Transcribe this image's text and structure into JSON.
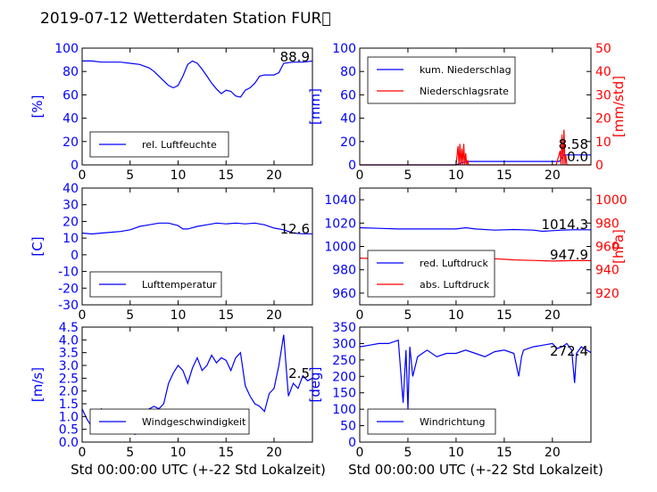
{
  "title": "2019-07-12 Wetterdaten Station FUR\u0000",
  "xlabel": "Std 00:00:00 UTC (+-22 Std Lokalzeit)",
  "colors": {
    "blue": "#0000ff",
    "red": "#ff0000",
    "axis": "#000000"
  },
  "chart_data": [
    {
      "type": "line",
      "panel": "humidity",
      "ylabel": "[%]",
      "xlim": [
        0,
        24
      ],
      "ylim": [
        0,
        100
      ],
      "xticks": [
        "0",
        "5",
        "10",
        "15",
        "20"
      ],
      "yticks": [
        "0",
        "20",
        "40",
        "60",
        "80",
        "100"
      ],
      "legend": [
        "rel. Luftfeuchte"
      ],
      "legend_loc": "lower-left",
      "annotation": "88.9",
      "series": [
        {
          "name": "rel. Luftfeuchte",
          "color": "#0000ff",
          "x": [
            0,
            1,
            2,
            3,
            4,
            5,
            6,
            7,
            7.5,
            8,
            8.5,
            9,
            9.5,
            10,
            10.5,
            11,
            11.5,
            12,
            12.5,
            13,
            13.5,
            14,
            14.5,
            15,
            15.5,
            16,
            16.5,
            17,
            17.5,
            18,
            18.5,
            19,
            19.5,
            20,
            20.5,
            21,
            22,
            23,
            24
          ],
          "y": [
            89,
            89,
            88,
            88,
            88,
            87,
            86,
            83,
            80,
            76,
            72,
            68,
            66,
            68,
            76,
            86,
            89,
            87,
            82,
            76,
            70,
            65,
            61,
            64,
            63,
            59,
            58,
            64,
            66,
            70,
            76,
            77,
            77,
            77,
            79,
            87,
            88,
            88,
            88.9
          ]
        }
      ]
    },
    {
      "type": "line",
      "panel": "precipitation",
      "ylabel": "[mm]",
      "y2label": "[mm/std]",
      "xlim": [
        0,
        24
      ],
      "ylim": [
        0,
        100
      ],
      "y2lim": [
        0,
        50
      ],
      "xticks": [
        "0",
        "5",
        "10",
        "15",
        "20"
      ],
      "yticks": [
        "0",
        "20",
        "40",
        "60",
        "80",
        "100"
      ],
      "y2ticks": [
        "0",
        "10",
        "20",
        "30",
        "40",
        "50"
      ],
      "legend": [
        "kum. Niederschlag",
        "Niederschlagsrate"
      ],
      "legend_loc": "upper-left",
      "annotations": [
        "8.58",
        "0.0"
      ],
      "series": [
        {
          "name": "kum. Niederschlag",
          "color": "#0000ff",
          "axis": "left",
          "x": [
            0,
            10.0,
            10.3,
            10.6,
            11,
            11.2,
            15,
            18,
            20.7,
            21.0,
            21.2,
            24
          ],
          "y": [
            0,
            0,
            1,
            2,
            2.5,
            3,
            3,
            3,
            3,
            6,
            8.58,
            8.58
          ]
        },
        {
          "name": "Niederschlagsrate",
          "color": "#ff0000",
          "axis": "right",
          "x": [
            0,
            10,
            10.2,
            10.3,
            10.4,
            10.5,
            10.6,
            10.7,
            10.8,
            10.9,
            11,
            11.1,
            11.2,
            11.3,
            20.4,
            20.6,
            20.8,
            20.9,
            21.0,
            21.1,
            21.2,
            21.3,
            21.4,
            21.5,
            24
          ],
          "y": [
            0,
            0,
            8,
            0,
            9,
            0,
            7,
            0,
            9,
            0,
            5,
            0,
            2,
            0,
            0,
            3,
            6,
            0,
            13,
            0,
            15,
            0,
            4,
            0,
            0
          ]
        }
      ]
    },
    {
      "type": "line",
      "panel": "temperature",
      "ylabel": "[C]",
      "xlim": [
        0,
        24
      ],
      "ylim": [
        -30,
        40
      ],
      "xticks": [
        "0",
        "5",
        "10",
        "15",
        "20"
      ],
      "yticks": [
        "-30",
        "-20",
        "-10",
        "0",
        "10",
        "20",
        "30",
        "40"
      ],
      "legend": [
        "Lufttemperatur"
      ],
      "legend_loc": "lower-left",
      "annotation": "12.6",
      "series": [
        {
          "name": "Lufttemperatur",
          "color": "#0000ff",
          "x": [
            0,
            1,
            2,
            3,
            4,
            5,
            6,
            7,
            8,
            9,
            10,
            10.5,
            11,
            12,
            13,
            14,
            15,
            16,
            17,
            18,
            19,
            20,
            21,
            22,
            23,
            24
          ],
          "y": [
            13,
            12.5,
            13,
            13.5,
            14,
            15,
            17,
            18,
            19,
            19,
            17.5,
            15.5,
            15.5,
            17,
            18,
            19,
            18.5,
            19,
            18.5,
            19,
            18,
            16,
            15,
            13,
            12.6,
            12.6
          ]
        }
      ]
    },
    {
      "type": "line",
      "panel": "pressure",
      "ylabel": "",
      "y2label": "[hPa]",
      "xlim": [
        0,
        24
      ],
      "ylim": [
        950,
        1050
      ],
      "y2lim": [
        910,
        1010
      ],
      "xticks": [
        "0",
        "5",
        "10",
        "15",
        "20"
      ],
      "yticks": [
        "960",
        "980",
        "1000",
        "1020",
        "1040"
      ],
      "y2ticks": [
        "920",
        "940",
        "960",
        "980",
        "1000"
      ],
      "legend": [
        "red. Luftdruck",
        "abs. Luftdruck"
      ],
      "legend_loc": "lower-left",
      "annotations": [
        "1014.3",
        "947.9"
      ],
      "series": [
        {
          "name": "red. Luftdruck",
          "color": "#0000ff",
          "axis": "left",
          "x": [
            0,
            2,
            4,
            6,
            8,
            10,
            11,
            12,
            14,
            16,
            18,
            19,
            20,
            21,
            22,
            23,
            24
          ],
          "y": [
            1016,
            1015.5,
            1015,
            1015,
            1015,
            1015,
            1016,
            1015,
            1014,
            1014.5,
            1014,
            1013,
            1013.5,
            1014,
            1014.3,
            1014.3,
            1014.3
          ]
        },
        {
          "name": "abs. Luftdruck",
          "color": "#ff0000",
          "axis": "right",
          "x": [
            0,
            2,
            4,
            6,
            8,
            10,
            12,
            14,
            15,
            16,
            18,
            20,
            22,
            24
          ],
          "y": [
            950,
            949.5,
            950,
            950,
            950.5,
            950.5,
            950,
            949.5,
            949,
            948.5,
            948,
            947.5,
            947.9,
            947.9
          ]
        }
      ]
    },
    {
      "type": "line",
      "panel": "wind-speed",
      "ylabel": "[m/s]",
      "xlim": [
        0,
        24
      ],
      "ylim": [
        0,
        4.5
      ],
      "xticks": [
        "0",
        "5",
        "10",
        "15",
        "20"
      ],
      "yticks": [
        "0.0",
        "0.5",
        "1.0",
        "1.5",
        "2.0",
        "2.5",
        "3.0",
        "3.5",
        "4.0",
        "4.5"
      ],
      "legend": [
        "Windgeschwindigkeit"
      ],
      "legend_loc": "lower-left",
      "annotation": "2.5",
      "series": [
        {
          "name": "Windgeschwindigkeit",
          "color": "#0000ff",
          "x": [
            0,
            0.5,
            1,
            1.5,
            2,
            2.5,
            3,
            3.5,
            4,
            4.5,
            5,
            5.5,
            6,
            6.5,
            7,
            7.5,
            8,
            8.5,
            9,
            9.5,
            10,
            10.5,
            11,
            11.5,
            12,
            12.5,
            13,
            13.5,
            14,
            14.5,
            15,
            15.5,
            16,
            16.5,
            17,
            17.5,
            18,
            18.5,
            19,
            19.5,
            20,
            20.5,
            21,
            21.5,
            22,
            22.5,
            23,
            23.5,
            24
          ],
          "y": [
            1.3,
            0.9,
            0.6,
            1.0,
            1.3,
            0.9,
            0.8,
            0.5,
            0.6,
            0.4,
            0.5,
            0.3,
            0.4,
            1.2,
            1.3,
            1.4,
            1.3,
            1.5,
            2.3,
            2.7,
            3.0,
            2.8,
            2.3,
            2.9,
            3.3,
            2.8,
            3.0,
            3.4,
            3.1,
            3.3,
            3.2,
            2.8,
            3.3,
            3.5,
            2.2,
            1.8,
            1.5,
            1.4,
            1.2,
            1.9,
            2.1,
            3.0,
            4.2,
            1.8,
            2.3,
            2.1,
            2.6,
            2.4,
            2.5
          ]
        }
      ]
    },
    {
      "type": "line",
      "panel": "wind-direction",
      "ylabel": "[deg]",
      "xlim": [
        0,
        24
      ],
      "ylim": [
        0,
        350
      ],
      "xticks": [
        "0",
        "5",
        "10",
        "15",
        "20"
      ],
      "yticks": [
        "0",
        "50",
        "100",
        "150",
        "200",
        "250",
        "300",
        "350"
      ],
      "legend": [
        "Windrichtung"
      ],
      "legend_loc": "lower-left",
      "annotation": "272.4",
      "series": [
        {
          "name": "Windrichtung",
          "color": "#0000ff",
          "x": [
            0,
            1,
            2,
            3,
            4,
            4.5,
            4.8,
            5.0,
            5.2,
            5.5,
            6,
            6.5,
            7,
            8,
            9,
            10,
            11,
            12,
            13,
            14,
            15,
            16,
            16.5,
            16.8,
            17,
            18,
            19,
            20,
            20.5,
            21,
            21.5,
            22,
            22.3,
            22.5,
            23,
            24
          ],
          "y": [
            290,
            295,
            300,
            300,
            310,
            120,
            280,
            100,
            290,
            200,
            260,
            270,
            280,
            260,
            270,
            270,
            280,
            270,
            260,
            275,
            280,
            270,
            200,
            260,
            280,
            290,
            295,
            300,
            285,
            290,
            300,
            280,
            180,
            270,
            290,
            272.4
          ]
        }
      ]
    }
  ]
}
